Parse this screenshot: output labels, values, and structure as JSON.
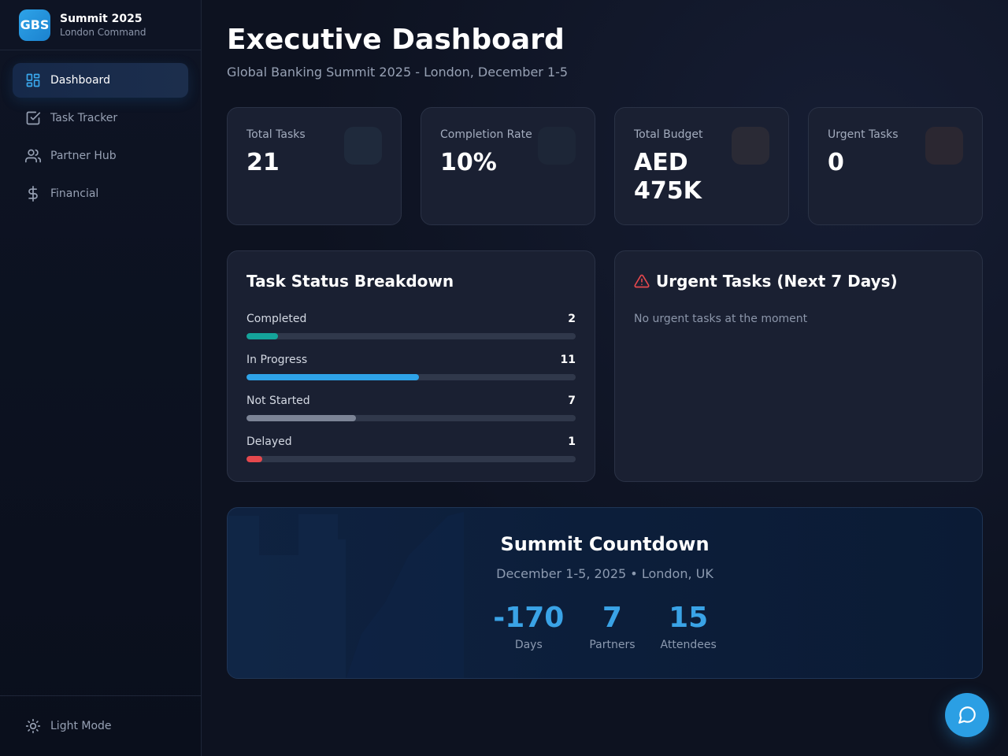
{
  "brand": {
    "logo": "GBS",
    "title": "Summit 2025",
    "subtitle": "London Command"
  },
  "sidebar": {
    "items": [
      {
        "label": "Dashboard",
        "icon": "dashboard-icon",
        "active": true
      },
      {
        "label": "Task Tracker",
        "icon": "checkbox-icon"
      },
      {
        "label": "Partner Hub",
        "icon": "users-icon"
      },
      {
        "label": "Financial",
        "icon": "dollar-icon"
      }
    ],
    "footer": {
      "label": "Light Mode",
      "icon": "sun-icon"
    }
  },
  "header": {
    "title": "Executive Dashboard",
    "subtitle": "Global Banking Summit 2025 - London, December 1-5"
  },
  "stats": [
    {
      "label": "Total Tasks",
      "value": "21"
    },
    {
      "label": "Completion Rate",
      "value": "10%"
    },
    {
      "label": "Total Budget",
      "value": "AED 475K"
    },
    {
      "label": "Urgent Tasks",
      "value": "0"
    }
  ],
  "task_status": {
    "title": "Task Status Breakdown",
    "total": 21,
    "rows": [
      {
        "label": "Completed",
        "count": 2,
        "color": "#14a39a"
      },
      {
        "label": "In Progress",
        "count": 11,
        "color": "#2ea3e8"
      },
      {
        "label": "Not Started",
        "count": 7,
        "color": "#7c8496"
      },
      {
        "label": "Delayed",
        "count": 1,
        "color": "#e5484d"
      }
    ]
  },
  "urgent": {
    "title": "Urgent Tasks (Next 7 Days)",
    "empty_message": "No urgent tasks at the moment",
    "icon_color": "#e5484d"
  },
  "countdown": {
    "title": "Summit Countdown",
    "subtitle": "December 1-5, 2025 • London, UK",
    "stats": [
      {
        "value": "-170",
        "label": "Days"
      },
      {
        "value": "7",
        "label": "Partners"
      },
      {
        "value": "15",
        "label": "Attendees"
      }
    ]
  },
  "colors": {
    "accent": "#2ea3e8",
    "background": "#0d1220",
    "card": "#1a2032"
  }
}
